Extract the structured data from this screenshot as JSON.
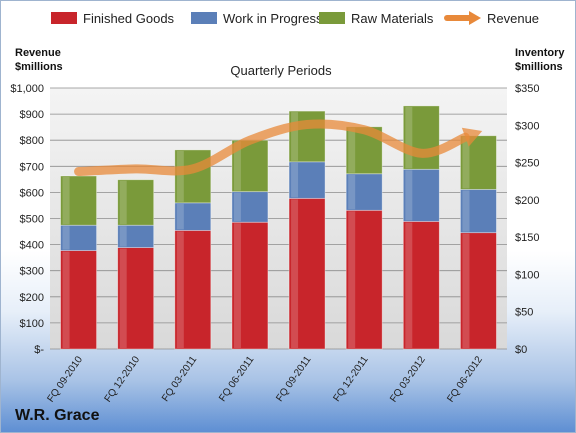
{
  "chart_data": {
    "type": "bar",
    "stacked": true,
    "title": "Quarterly Periods",
    "company": "W.R. Grace",
    "categories": [
      "FQ 09-2010",
      "FQ 12-2010",
      "FQ 03-2011",
      "FQ 06-2011",
      "FQ 09-2011",
      "FQ 12-2011",
      "FQ 03-2012",
      "FQ 06-2012"
    ],
    "left_axis": {
      "label_line1": "Revenue",
      "label_line2": "$millions",
      "range": [
        0,
        1000
      ],
      "ticks": [
        {
          "value": 0,
          "label": "$-"
        },
        {
          "value": 100,
          "label": "$100"
        },
        {
          "value": 200,
          "label": "$200"
        },
        {
          "value": 300,
          "label": "$300"
        },
        {
          "value": 400,
          "label": "$400"
        },
        {
          "value": 500,
          "label": "$500"
        },
        {
          "value": 600,
          "label": "$600"
        },
        {
          "value": 700,
          "label": "$700"
        },
        {
          "value": 800,
          "label": "$800"
        },
        {
          "value": 900,
          "label": "$900"
        },
        {
          "value": 1000,
          "label": "$1,000"
        }
      ]
    },
    "right_axis": {
      "label_line1": "Inventory",
      "label_line2": "$millions",
      "range": [
        0,
        350
      ],
      "ticks": [
        {
          "value": 0,
          "label": "$0"
        },
        {
          "value": 50,
          "label": "$50"
        },
        {
          "value": 100,
          "label": "$100"
        },
        {
          "value": 150,
          "label": "$150"
        },
        {
          "value": 200,
          "label": "$200"
        },
        {
          "value": 250,
          "label": "$250"
        },
        {
          "value": 300,
          "label": "$300"
        },
        {
          "value": 350,
          "label": "$350"
        }
      ]
    },
    "series": [
      {
        "name": "Finished Goods",
        "color": "#c8252b",
        "values": [
          132,
          136,
          159,
          170,
          202,
          186,
          171,
          156
        ]
      },
      {
        "name": "Work in Progress",
        "color": "#5b7fb8",
        "values": [
          34,
          30,
          37,
          41,
          49,
          49,
          70,
          58
        ]
      },
      {
        "name": "Raw Materials",
        "color": "#7a9a3a",
        "values": [
          66,
          61,
          71,
          69,
          68,
          63,
          85,
          72
        ]
      }
    ],
    "line_series": {
      "name": "Revenue",
      "color": "#e8893a",
      "axis": "left",
      "values": [
        680,
        690,
        690,
        800,
        860,
        840,
        750,
        830
      ]
    },
    "grid": true,
    "legend_position": "top"
  }
}
